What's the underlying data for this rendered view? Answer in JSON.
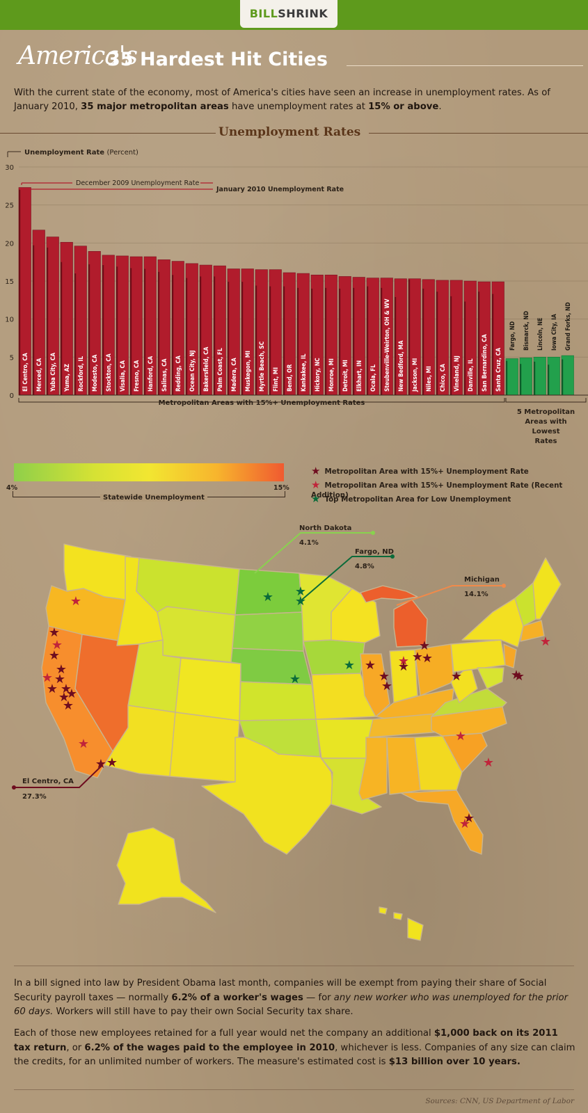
{
  "brand": {
    "part1": "BILL",
    "part2": "SHRINK"
  },
  "title": {
    "script": "America's",
    "rest": "35 Hardest Hit Cities"
  },
  "intro": {
    "p1": "With the current state of the economy, most of America's cities have seen an increase in unemployment rates. As of January 2010, ",
    "b1": "35 major metropolitan areas",
    "p2": " have unemployment rates at ",
    "b2": "15% or above",
    "p3": "."
  },
  "section_title": "Unemployment Rates",
  "chart_data": {
    "type": "bar",
    "ylabel": "Unemployment Rate",
    "ylabel_unit": "(Percent)",
    "ylim": [
      0,
      30
    ],
    "yticks": [
      0,
      5,
      10,
      15,
      20,
      25,
      30
    ],
    "annotation_dec": "December 2009 Unemployment Rate",
    "annotation_jan": "January 2010 Unemployment Rate",
    "group_high_label": "Metropolitan Areas with 15%+ Unemployment Rates",
    "group_low_label": "5 Metropolitan Areas with Lowest Rates",
    "categories": [
      "El Centro, CA",
      "Merced, CA",
      "Yuba City, CA",
      "Yuma, AZ",
      "Rockford, IL",
      "Modesto, CA",
      "Stockton, CA",
      "Visalia, CA",
      "Fresno, CA",
      "Hanford, CA",
      "Salinas, CA",
      "Redding, CA",
      "Ocean City, NJ",
      "Bakersfield, CA",
      "Palm Coast, FL",
      "Madera, CA",
      "Muskegon, MI",
      "Myrtle Beach, SC",
      "Flint, MI",
      "Bend, OR",
      "Kankakee, IL",
      "Hickory, NC",
      "Monroe, MI",
      "Detroit, MI",
      "Elkhart, IN",
      "Ocala, FL",
      "Steubenville-Weirton, OH & WV",
      "New Bedford, MA",
      "Jackson, MI",
      "Niles, MI",
      "Chico, CA",
      "Vineland, NJ",
      "Danville, IL",
      "San Bernardino, CA",
      "Santa Cruz, CA",
      "Fargo, ND",
      "Bismarck, ND",
      "Lincoln, NE",
      "Iowa City, IA",
      "Grand Forks, ND"
    ],
    "series": [
      {
        "name": "December 2009 Unemployment Rate",
        "values": [
          27.0,
          19.7,
          19.4,
          17.5,
          16.0,
          17.2,
          17.1,
          16.9,
          16.7,
          16.6,
          16.2,
          15.8,
          15.4,
          15.6,
          15.6,
          14.9,
          14.9,
          14.4,
          14.3,
          14.3,
          14.1,
          14.0,
          14.1,
          14.0,
          14.1,
          14.3,
          14.1,
          12.9,
          15.2,
          14.0,
          13.6,
          13.0,
          12.3,
          13.6,
          13.3,
          4.5,
          4.1,
          4.4,
          4.0,
          4.7
        ]
      },
      {
        "name": "January 2010 Unemployment Rate",
        "values": [
          27.3,
          21.7,
          20.8,
          20.1,
          19.6,
          18.9,
          18.4,
          18.3,
          18.2,
          18.2,
          17.8,
          17.6,
          17.3,
          17.1,
          17.0,
          16.6,
          16.6,
          16.5,
          16.5,
          16.1,
          16.0,
          15.8,
          15.8,
          15.6,
          15.5,
          15.4,
          15.4,
          15.3,
          15.3,
          15.2,
          15.1,
          15.1,
          15.0,
          14.9,
          14.9,
          4.8,
          4.9,
          5.0,
          5.0,
          5.2
        ]
      }
    ],
    "colors": {
      "high": "#b11c2c",
      "high_dark": "#6e0d17",
      "low": "#22a04c",
      "low_dark": "#0c5c29"
    }
  },
  "legend": {
    "low_value": "4%",
    "high_value": "15%",
    "label": "Statewide Unemployment",
    "keys": [
      {
        "label": "Metropolitan Area with 15%+ Unemployment Rate",
        "color": "#6e0d1f"
      },
      {
        "label": "Metropolitan Area with 15%+ Unemployment Rate (Recent Addition)",
        "color": "#c0243a"
      },
      {
        "label": "Top Metropolitan Area for Low Unemployment",
        "color": "#0b6b3a"
      }
    ]
  },
  "map_callouts": [
    {
      "name": "North Dakota",
      "value": "4.1%"
    },
    {
      "name": "Fargo, ND",
      "value": "4.8%"
    },
    {
      "name": "Michigan",
      "value": "14.1%"
    },
    {
      "name": "El Centro, CA",
      "value": "27.3%"
    }
  ],
  "body": {
    "p1_a": "In a bill signed into law by President Obama last month, companies will be exempt from paying their share of Social Security payroll taxes — normally ",
    "p1_b": "6.2% of a worker's wages",
    "p1_c": " — for ",
    "p1_d": "any new worker who was unemployed for the prior 60 days.",
    "p1_e": " Workers will still have to pay their own Social Security tax share.",
    "p2_a": "Each of those new employees retained for a full year would net the company an additional ",
    "p2_b": "$1,000 back on its 2011 tax return",
    "p2_c": ", or ",
    "p2_d": "6.2% of the wages paid to the employee in 2010",
    "p2_e": ", whichever is less. Companies of any size can claim the credits, for an unlimited number of workers. The measure's estimated cost is ",
    "p2_f": "$13 billion over 10 years."
  },
  "sources": "Sources: CNN, US Department of Labor"
}
